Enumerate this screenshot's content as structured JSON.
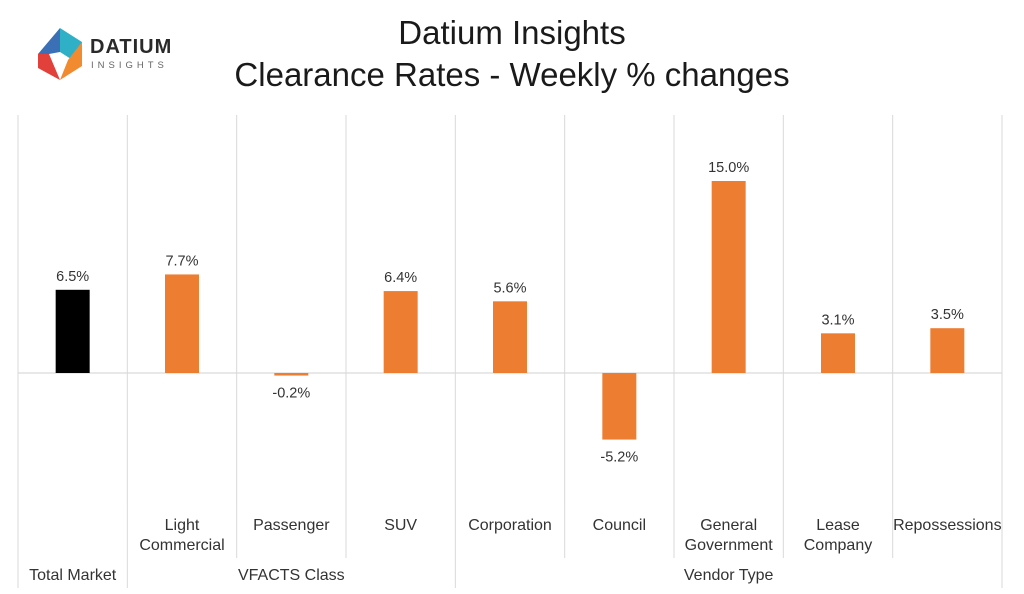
{
  "logo": {
    "brand": "DATIUM",
    "sub": "INSIGHTS"
  },
  "title": {
    "line1": "Datium Insights",
    "line2": "Clearance Rates - Weekly % changes"
  },
  "colors": {
    "total": "#000000",
    "bar": "#ED7D31",
    "grid": "#d9d9d9",
    "logo_blue": "#3b6fb6",
    "logo_teal": "#30b0c7",
    "logo_orange": "#f28a30",
    "logo_red": "#e2403a"
  },
  "chart_data": {
    "type": "bar",
    "title": "Clearance Rates - Weekly % changes",
    "categories": [
      [
        "",
        "Total Market"
      ],
      [
        "Light",
        "Commercial"
      ],
      [
        "Passenger"
      ],
      [
        "SUV"
      ],
      [
        "Corporation"
      ],
      [
        "Council"
      ],
      [
        "General",
        "Government"
      ],
      [
        "Lease",
        "Company"
      ],
      [
        "Repossessions"
      ]
    ],
    "values": [
      6.5,
      7.7,
      -0.2,
      6.4,
      5.6,
      -5.2,
      15.0,
      3.1,
      3.5
    ],
    "value_labels": [
      "6.5%",
      "7.7%",
      "-0.2%",
      "6.4%",
      "5.6%",
      "-5.2%",
      "15.0%",
      "3.1%",
      "3.5%"
    ],
    "groups": [
      {
        "label": "VFACTS Class",
        "start": 1,
        "end": 3
      },
      {
        "label": "Vendor Type",
        "start": 4,
        "end": 8
      }
    ],
    "highlight_index": 0,
    "ylim": [
      -10,
      20
    ],
    "grid": false
  }
}
